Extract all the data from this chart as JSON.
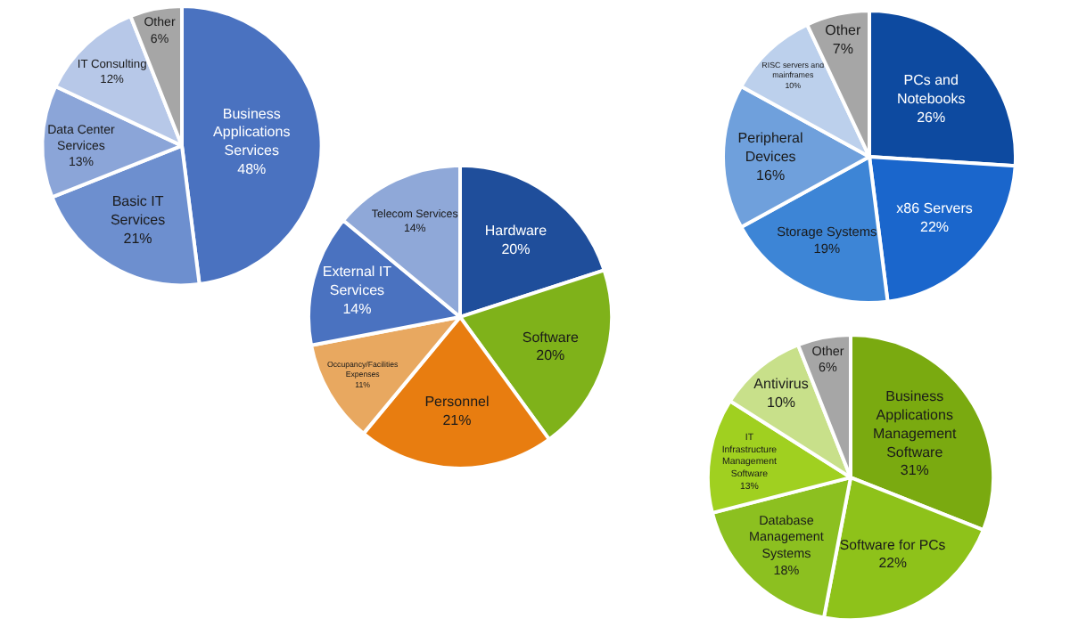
{
  "chart_data": [
    {
      "type": "pie",
      "categories": [
        "Business Applications Services",
        "Basic IT Services",
        "Data Center Services",
        "IT Consulting",
        "Other"
      ],
      "values": [
        48,
        21,
        13,
        12,
        6
      ],
      "value_labels": [
        "48%",
        "21%",
        "13%",
        "12%",
        "6%"
      ],
      "colors": [
        "#4a72c0",
        "#6d8fcf",
        "#8ba5d8",
        "#b7c8e8",
        "#a6a6a6"
      ]
    },
    {
      "type": "pie",
      "categories": [
        "Hardware",
        "Software",
        "Personnel",
        "Occupancy/Facilities Expenses",
        "External IT Services",
        "Telecom Services"
      ],
      "values": [
        20,
        20,
        21,
        11,
        14,
        14
      ],
      "value_labels": [
        "20%",
        "20%",
        "21%",
        "11%",
        "14%",
        "14%"
      ],
      "colors": [
        "#1f4e9b",
        "#7fb21a",
        "#e87d10",
        "#e8a860",
        "#4a72c0",
        "#8fa8d8"
      ]
    },
    {
      "type": "pie",
      "categories": [
        "PCs and Notebooks",
        "x86 Servers",
        "Storage Systems",
        "Peripheral Devices",
        "RISC servers and mainframes",
        "Other"
      ],
      "values": [
        26,
        22,
        19,
        16,
        10,
        7
      ],
      "value_labels": [
        "26%",
        "22%",
        "19%",
        "16%",
        "10%",
        "7%"
      ],
      "colors": [
        "#0d4aa0",
        "#1a66cc",
        "#3d85d6",
        "#6fa0dc",
        "#bcd0ec",
        "#a6a6a6"
      ]
    },
    {
      "type": "pie",
      "categories": [
        "Business Applications Management Software",
        "Software for PCs",
        "Database Management Systems",
        "IT Infrastructure Management Software",
        "Antivirus",
        "Other"
      ],
      "values": [
        31,
        22,
        18,
        13,
        10,
        6
      ],
      "value_labels": [
        "31%",
        "22%",
        "18%",
        "13%",
        "10%",
        "6%"
      ],
      "colors": [
        "#7aaa10",
        "#8ec21a",
        "#8cc020",
        "#a0d020",
        "#c8e08a",
        "#a6a6a6"
      ]
    }
  ]
}
